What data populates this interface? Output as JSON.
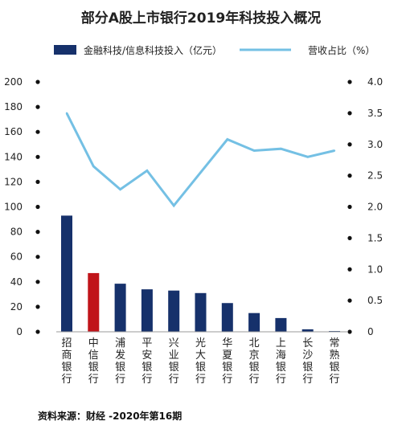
{
  "chart_data": {
    "type": "bar+line",
    "title": "部分A股上市银行2019年科技投入概况",
    "categories": [
      "招商银行",
      "中信银行",
      "浦发银行",
      "平安银行",
      "兴业银行",
      "光大银行",
      "华夏银行",
      "北京银行",
      "上海银行",
      "长沙银行",
      "常熟银行"
    ],
    "series": [
      {
        "name": "金融科技/信息科技投入（亿元）",
        "type": "bar",
        "axis": "left",
        "values": [
          93,
          47,
          38.5,
          34,
          33,
          31,
          23,
          15,
          11,
          2,
          0.6
        ],
        "colors": [
          "#16316b",
          "#c0141a",
          "#16316b",
          "#16316b",
          "#16316b",
          "#16316b",
          "#16316b",
          "#16316b",
          "#16316b",
          "#16316b",
          "#16316b"
        ]
      },
      {
        "name": "营收占比（%）",
        "type": "line",
        "axis": "right",
        "values": [
          3.5,
          2.65,
          2.28,
          2.58,
          2.02,
          2.55,
          3.08,
          2.9,
          2.93,
          2.8,
          2.9
        ],
        "color": "#74c0e4"
      }
    ],
    "y_left": {
      "min": 0,
      "max": 200,
      "ticks": [
        "0",
        "20",
        "40",
        "60",
        "80",
        "100",
        "120",
        "140",
        "160",
        "180",
        "200"
      ]
    },
    "y_right": {
      "min": 0,
      "max": 4,
      "ticks": [
        "0",
        "0.5",
        "1.0",
        "1.5",
        "2.0",
        "2.5",
        "3.0",
        "3.5",
        "4.0"
      ]
    },
    "legend_position": "top"
  },
  "source": "资料来源：财经 -2020年第16期"
}
